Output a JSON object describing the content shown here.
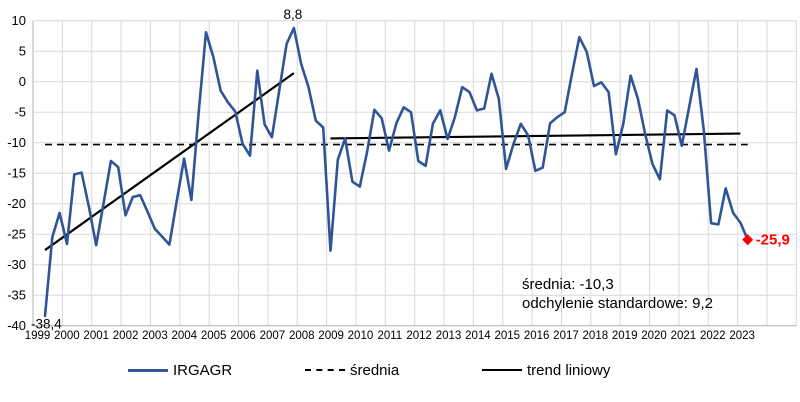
{
  "chart_data": {
    "type": "line",
    "title": "",
    "frequency": "quarterly",
    "start_period": "1999Q2",
    "x_year_labels": [
      "1999",
      "2000",
      "2001",
      "2002",
      "2003",
      "2004",
      "2005",
      "2006",
      "2007",
      "2008",
      "2009",
      "2010",
      "2011",
      "2012",
      "2013",
      "2014",
      "2015",
      "2016",
      "2017",
      "2018",
      "2019",
      "2020",
      "2021",
      "2022",
      "2023"
    ],
    "series": [
      {
        "name": "IRGAGR",
        "values": [
          -38.4,
          -25.5,
          -21.5,
          -26.6,
          -15.2,
          -14.9,
          -20.5,
          -26.8,
          -19.9,
          -13.0,
          -14.0,
          -21.9,
          -18.9,
          -18.6,
          -21.3,
          -24.1,
          -25.4,
          -26.7,
          -19.5,
          -12.6,
          -19.4,
          -5.0,
          8.1,
          4.0,
          -1.5,
          -3.4,
          -4.9,
          -10.2,
          -12.1,
          1.8,
          -7.0,
          -9.1,
          -1.5,
          6.2,
          8.8,
          2.9,
          -0.9,
          -6.4,
          -7.5,
          -27.7,
          -12.8,
          -9.3,
          -16.4,
          -17.2,
          -11.5,
          -4.6,
          -6.0,
          -11.3,
          -6.8,
          -4.2,
          -5.0,
          -13.0,
          -13.8,
          -6.9,
          -4.7,
          -9.4,
          -5.8,
          -0.9,
          -1.7,
          -4.7,
          -4.4,
          1.3,
          -2.8,
          -14.3,
          -10.2,
          -6.9,
          -8.8,
          -14.6,
          -14.1,
          -6.8,
          -5.8,
          -5.0,
          1.3,
          7.3,
          4.9,
          -0.7,
          -0.1,
          -1.7,
          -11.9,
          -6.9,
          1.0,
          -2.8,
          -8.6,
          -13.5,
          -16.0,
          -4.7,
          -5.5,
          -10.5,
          -4.2,
          2.1,
          -8.0,
          -23.2,
          -23.4,
          -17.5,
          -21.5,
          -23.1,
          -25.9
        ]
      }
    ],
    "y_ticks": [
      10,
      5,
      0,
      -5,
      -10,
      -15,
      -20,
      -25,
      -30,
      -35,
      -40
    ],
    "ylim": [
      -40,
      10
    ],
    "grid": true,
    "legend_position": "bottom",
    "mean_value": -10.3,
    "std_value": 9.2,
    "trend_segments": [
      {
        "from_index": 0,
        "to_index": 34,
        "from_value": -27.6,
        "to_value": 1.4
      },
      {
        "from_index": 39,
        "to_index": 95,
        "from_value": -9.3,
        "to_value": -8.5
      }
    ]
  },
  "annotations": {
    "start_value": "-38,4",
    "peak_value": "8,8",
    "end_value": "-25,9",
    "stats_line1": "średnia: -10,3",
    "stats_line2": "odchylenie standardowe: 9,2"
  },
  "legend": {
    "series_label": "IRGAGR",
    "mean_label": "średnia",
    "trend_label": "trend liniowy"
  },
  "colors": {
    "series": "#2F5597",
    "end_marker": "#FF0000",
    "end_label": "#FF0000",
    "trend": "#000000",
    "mean": "#000000",
    "grid": "#D9D9D9",
    "axis": "#BFBFBF",
    "text": "#000000"
  }
}
